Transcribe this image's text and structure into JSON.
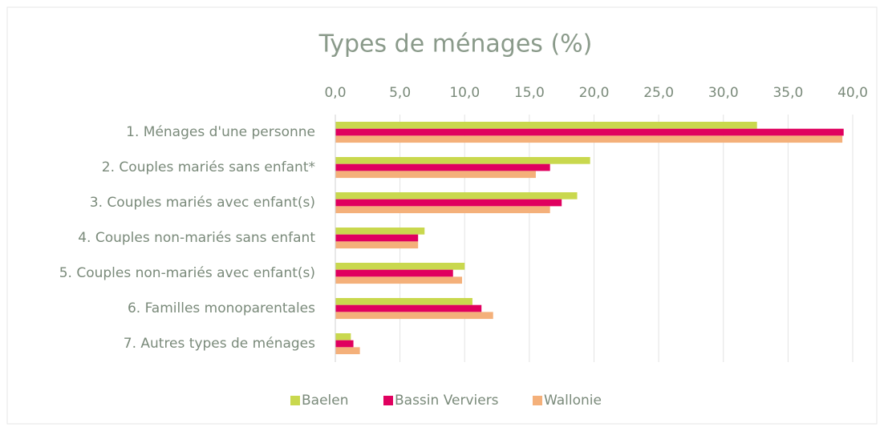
{
  "chart_data": {
    "type": "bar",
    "orientation": "horizontal",
    "title": "Types de ménages (%)",
    "categories": [
      "1. Ménages d'une personne",
      "2. Couples mariés sans enfant*",
      "3. Couples mariés avec enfant(s)",
      "4. Couples non-mariés sans enfant",
      "5. Couples non-mariés avec enfant(s)",
      "6. Familles monoparentales",
      "7. Autres types de ménages"
    ],
    "series": [
      {
        "name": "Baelen",
        "color": "#c9d84e",
        "values": [
          32.6,
          19.7,
          18.7,
          6.9,
          10.0,
          10.6,
          1.2
        ]
      },
      {
        "name": "Bassin Verviers",
        "color": "#e0005f",
        "values": [
          39.3,
          16.6,
          17.5,
          6.4,
          9.1,
          11.3,
          1.4
        ]
      },
      {
        "name": "Wallonie",
        "color": "#f4b07a",
        "values": [
          39.2,
          15.5,
          16.6,
          6.4,
          9.8,
          12.2,
          1.9
        ]
      }
    ],
    "xlim": [
      0,
      40
    ],
    "xticks": [
      {
        "value": 0,
        "label": "0,0"
      },
      {
        "value": 5,
        "label": "5,0"
      },
      {
        "value": 10,
        "label": "10,0"
      },
      {
        "value": 15,
        "label": "15,0"
      },
      {
        "value": 20,
        "label": "20,0"
      },
      {
        "value": 25,
        "label": "25,0"
      },
      {
        "value": 30,
        "label": "30,0"
      },
      {
        "value": 35,
        "label": "35,0"
      },
      {
        "value": 40,
        "label": "40,0"
      }
    ],
    "grid": true,
    "legend": "bottom"
  }
}
